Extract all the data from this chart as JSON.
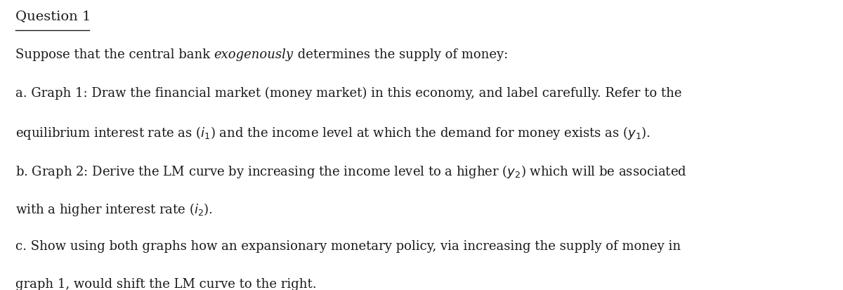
{
  "background_color": "#ffffff",
  "title": "Question 1",
  "title_fontsize": 14,
  "body_fontsize": 13,
  "font_family": "serif",
  "text_color": "#1a1a1a",
  "line1_pre": "Suppose that the central bank ",
  "line1_italic": "exogenously",
  "line1_post": " determines the supply of money:",
  "line2": "a. Graph 1: Draw the financial market (money market) in this economy, and label carefully. Refer to the",
  "line3": "equilibrium interest rate as ($i_1$) and the income level at which the demand for money exists as ($y_1$).",
  "line4": "b. Graph 2: Derive the LM curve by increasing the income level to a higher ($y_2$) which will be associated",
  "line5": "with a higher interest rate ($i_2$).",
  "line6": "c. Show using both graphs how an expansionary monetary policy, via increasing the supply of money in",
  "line7": "graph 1, would shift the LM curve to the right.",
  "fig_width": 12.0,
  "fig_height": 4.13
}
